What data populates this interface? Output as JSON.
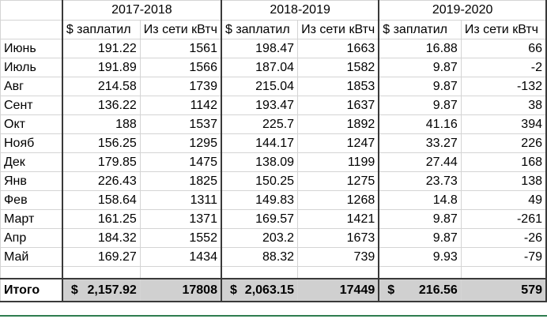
{
  "years": [
    "2017-2018",
    "2018-2019",
    "2019-2020"
  ],
  "subheaders": {
    "paid": "$ заплатил",
    "grid": "Из сети кВтч"
  },
  "rows": [
    {
      "month": "Июнь",
      "v": [
        "191.22",
        "1561",
        "198.47",
        "1663",
        "16.88",
        "66"
      ]
    },
    {
      "month": "Июль",
      "v": [
        "191.89",
        "1566",
        "187.04",
        "1582",
        "9.87",
        "-2"
      ]
    },
    {
      "month": "Авг",
      "v": [
        "214.58",
        "1739",
        "215.04",
        "1853",
        "9.87",
        "-132"
      ]
    },
    {
      "month": "Сент",
      "v": [
        "136.22",
        "1142",
        "193.47",
        "1637",
        "9.87",
        "38"
      ]
    },
    {
      "month": "Окт",
      "v": [
        "188",
        "1537",
        "225.7",
        "1892",
        "41.16",
        "394"
      ]
    },
    {
      "month": "Нояб",
      "v": [
        "156.25",
        "1295",
        "144.17",
        "1247",
        "33.27",
        "226"
      ]
    },
    {
      "month": "Дек",
      "v": [
        "179.85",
        "1475",
        "138.09",
        "1199",
        "27.44",
        "168"
      ]
    },
    {
      "month": "Янв",
      "v": [
        "226.43",
        "1825",
        "150.25",
        "1275",
        "23.73",
        "138"
      ]
    },
    {
      "month": "Фев",
      "v": [
        "158.64",
        "1311",
        "149.83",
        "1268",
        "14.8",
        "49"
      ]
    },
    {
      "month": "Март",
      "v": [
        "161.25",
        "1371",
        "169.57",
        "1421",
        "9.87",
        "-261"
      ]
    },
    {
      "month": "Апр",
      "v": [
        "184.32",
        "1552",
        "203.2",
        "1673",
        "9.87",
        "-26"
      ]
    },
    {
      "month": "Май",
      "v": [
        "169.27",
        "1434",
        "88.32",
        "739",
        "9.93",
        "-79"
      ]
    }
  ],
  "total": {
    "label": "Итого",
    "currency": "$",
    "values": [
      "2,157.92",
      "17808",
      "2,063.15",
      "17449",
      "216.56",
      "579"
    ]
  }
}
